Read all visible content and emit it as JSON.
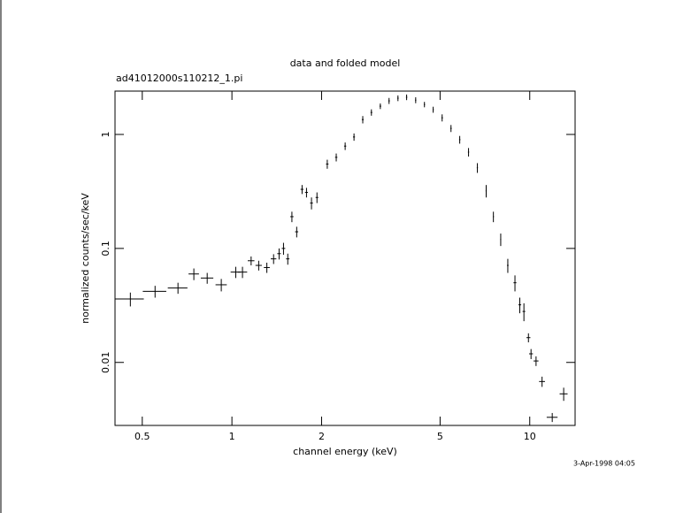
{
  "chart_data": {
    "type": "scatter",
    "title": "data and folded model",
    "subtitle": "ad41012000s110212_1.pi",
    "x_label": "channel energy (keV)",
    "y_label": "normalized counts/sec/keV",
    "footer": "3-Apr-1998 04:05",
    "x_log": true,
    "y_log": true,
    "xlim": [
      0.405,
      14.2
    ],
    "ylim": [
      0.0028,
      2.4
    ],
    "xticks": [
      0.5,
      1,
      2,
      5,
      10
    ],
    "yticks": [
      0.01,
      0.1,
      1
    ],
    "color": "#000000",
    "x": [
      0.456,
      0.552,
      0.659,
      0.745,
      0.826,
      0.921,
      1.03,
      1.085,
      1.16,
      1.23,
      1.31,
      1.38,
      1.44,
      1.49,
      1.54,
      1.59,
      1.65,
      1.72,
      1.78,
      1.85,
      1.93,
      2.09,
      2.24,
      2.4,
      2.57,
      2.75,
      2.94,
      3.15,
      3.37,
      3.61,
      3.86,
      4.14,
      4.43,
      4.74,
      5.08,
      5.44,
      5.82,
      6.23,
      6.67,
      7.14,
      7.55,
      7.99,
      8.44,
      8.92,
      9.26,
      9.56,
      9.9,
      10.1,
      10.5,
      11.0,
      11.9,
      13.0
    ],
    "xerr": [
      0.05,
      0.05,
      0.05,
      0.03,
      0.04,
      0.04,
      0.04,
      0.04,
      0.03,
      0.03,
      0.03,
      0.03,
      0.02,
      0.02,
      0.02,
      0.02,
      0.02,
      0.02,
      0.02,
      0.02,
      0.02,
      0.02,
      0.02,
      0.02,
      0.02,
      0.02,
      0.02,
      0.02,
      0.02,
      0.02,
      0.02,
      0.02,
      0.02,
      0.02,
      0.03,
      0.03,
      0.03,
      0.03,
      0.03,
      0.03,
      0.03,
      0.03,
      0.05,
      0.1,
      0.1,
      0.1,
      0.15,
      0.15,
      0.2,
      0.25,
      0.5,
      0.4
    ],
    "values": [
      0.036,
      0.042,
      0.045,
      0.0597,
      0.055,
      0.048,
      0.062,
      0.062,
      0.078,
      0.071,
      0.068,
      0.081,
      0.09,
      0.1,
      0.081,
      0.19,
      0.14,
      0.33,
      0.31,
      0.25,
      0.28,
      0.55,
      0.63,
      0.79,
      0.95,
      1.35,
      1.56,
      1.77,
      1.97,
      2.08,
      2.12,
      2.0,
      1.83,
      1.65,
      1.4,
      1.13,
      0.9,
      0.7,
      0.51,
      0.32,
      0.19,
      0.12,
      0.071,
      0.05,
      0.032,
      0.028,
      0.0165,
      0.0119,
      0.0103,
      0.0068,
      0.0033,
      0.0053
    ],
    "yerr": [
      0.005,
      0.005,
      0.005,
      0.007,
      0.006,
      0.006,
      0.007,
      0.007,
      0.007,
      0.007,
      0.007,
      0.008,
      0.01,
      0.012,
      0.009,
      0.02,
      0.015,
      0.03,
      0.03,
      0.03,
      0.03,
      0.05,
      0.05,
      0.06,
      0.07,
      0.1,
      0.1,
      0.1,
      0.12,
      0.12,
      0.12,
      0.12,
      0.1,
      0.1,
      0.1,
      0.08,
      0.07,
      0.06,
      0.05,
      0.04,
      0.02,
      0.015,
      0.01,
      0.008,
      0.005,
      0.005,
      0.0015,
      0.0012,
      0.001,
      0.0007,
      0.0003,
      0.0007
    ]
  }
}
